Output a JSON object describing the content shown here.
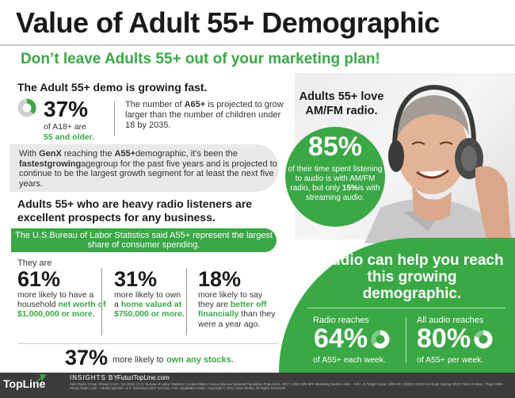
{
  "title": "Value of Adult 55+ Demographic",
  "subtitle": "Don’t leave Adults 55+ out of your marketing plan!",
  "growing": {
    "heading": "The Adult 55+ demo is growing fast.",
    "stat": "37%",
    "stat_fraction": 0.37,
    "desc_line1": "of A18+ are",
    "desc_line2": "55 and older.",
    "a65_pre": "The number of ",
    "a65_bold": "A65+",
    "a65_post": " is projected to grow larger than the number of children under 18 by 2035."
  },
  "genx": {
    "p1": "With ",
    "b1": "GenX",
    "p2": " reaching the ",
    "b2": "A55+",
    "p3": "demographic, it’s been the ",
    "b3": "fastestgrowing",
    "p4": "agegroup for the past five years and is projected to continue to be the largest growth segment for at least the next five years."
  },
  "radio_heading": "Adults 55+ who are heavy radio listeners are excellent prospects for any business.",
  "bls": "The U.S.Bureau of Labor Statistics said A55+ represent the largest share of consumer spending.",
  "they_are": "They are",
  "stats": [
    {
      "value": "61%",
      "plain": "more likely to have a household ",
      "bold": "net worth of $1,000,000 or more.",
      "tail": ""
    },
    {
      "value": "31%",
      "plain": "more likely to own a ",
      "bold": "home valued at $750,000 or more.",
      "tail": ""
    },
    {
      "value": "18%",
      "plain": "more likely to say they are ",
      "bold": "better off financially",
      "tail": " than they were a year ago."
    }
  ],
  "stocks": {
    "value": "37%",
    "plain": "more likely to ",
    "bold": "own any stocks."
  },
  "love": {
    "heading": "Adults 55+ love AM/FM radio.",
    "stat": "85%",
    "desc_pre": "of their time spent listening to audio is with AM/FM radio, but only ",
    "desc_bold": "15%",
    "desc_post": "is with streaming audio."
  },
  "audio": {
    "heading": "Audio can help you reach this growing demographic.",
    "radio_label": "Radio reaches",
    "radio_value": "64%",
    "radio_fraction": 0.64,
    "radio_desc": "of A55+ each week.",
    "all_label": "All audio reaches",
    "all_value": "80%",
    "all_fraction": 0.8,
    "all_desc": "of A55+ per week."
  },
  "footer": {
    "logo": "TopLine",
    "insights": "INSIGHTS BY",
    "url": "FuturiTopLine.com",
    "fine": "Katz Radio Group; Shows (A12+, Q4 2020) | U.S. Bureau of Labor Statistics | United States Census Bureau National Population Projections, 2017 | 2020 GfK MRI Marketing Market: A55+, A18+, % Target Comp | MRI-SIC (2020) COVID-19 Study (Spring 2020) Total US Base, Target M55+ Heavy Radio User = Media Quintile I & II, Weekdays (M-F 6a-12a). A18+ Qualitative Index. Copyright © 2021 Futuri Media, All Rights Reserved"
  },
  "colors": {
    "accent": "#3aa845",
    "dark": "#1a1a1a",
    "footer": "#3c3c3c"
  }
}
